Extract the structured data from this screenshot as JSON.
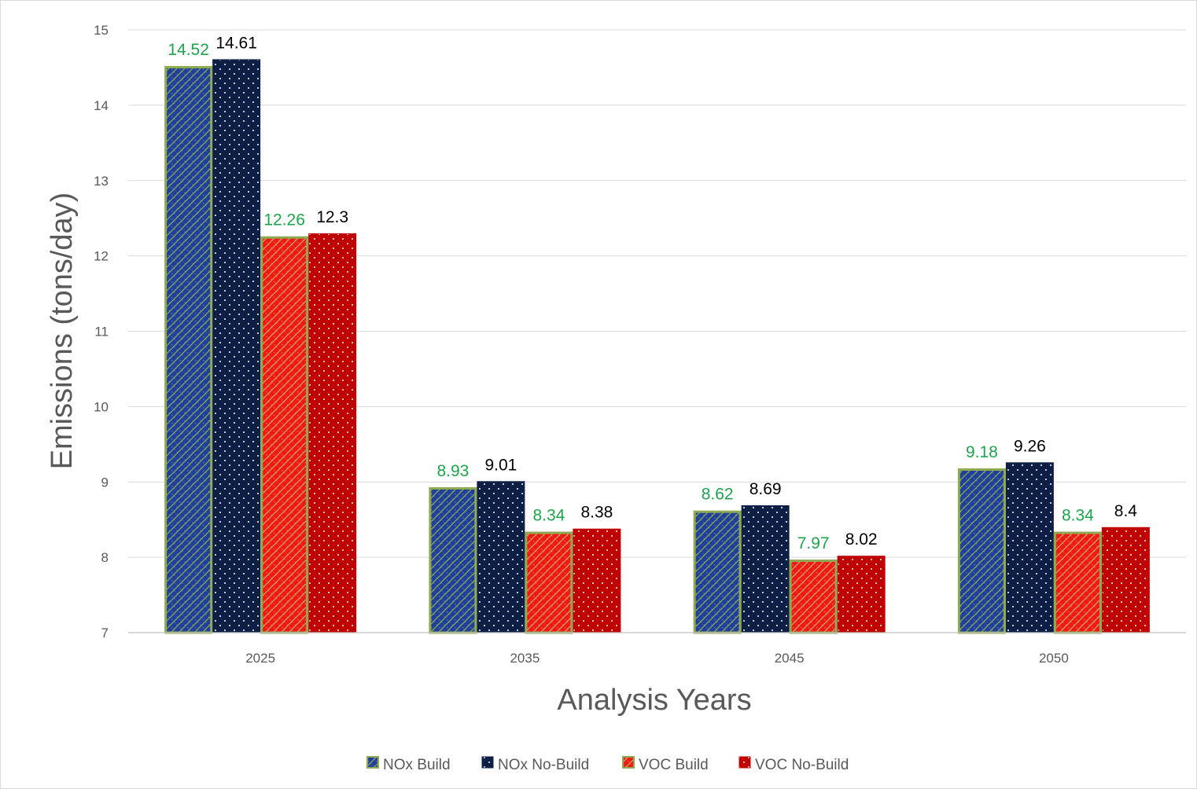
{
  "chart_data": {
    "type": "bar",
    "title": "",
    "xlabel": "Analysis Years",
    "ylabel": "Emissions (tons/day)",
    "ylim": [
      7,
      15
    ],
    "yticks": [
      7,
      8,
      9,
      10,
      11,
      12,
      13,
      14,
      15
    ],
    "grid": true,
    "legend_position": "bottom",
    "categories": [
      "2025",
      "2035",
      "2045",
      "2050"
    ],
    "series": [
      {
        "name": "NOx Build",
        "values": [
          14.52,
          8.93,
          8.62,
          9.18
        ],
        "value_labels": [
          "14.52",
          "8.93",
          "8.62",
          "9.18"
        ],
        "fill": "#1f3f9f",
        "pattern": "hatch",
        "border": "#8faa52",
        "label_color": "#1ea44c"
      },
      {
        "name": "NOx No-Build",
        "values": [
          14.61,
          9.01,
          8.69,
          9.26
        ],
        "value_labels": [
          "14.61",
          "9.01",
          "8.69",
          "9.26"
        ],
        "fill": "#0e1f45",
        "pattern": "dots",
        "border": "#0e1f45",
        "label_color": "#000000"
      },
      {
        "name": "VOC Build",
        "values": [
          12.26,
          8.34,
          7.97,
          8.34
        ],
        "value_labels": [
          "12.26",
          "8.34",
          "7.97",
          "8.34"
        ],
        "fill": "#f21a10",
        "pattern": "hatch",
        "border": "#8faa52",
        "label_color": "#1ea44c"
      },
      {
        "name": "VOC No-Build",
        "values": [
          12.3,
          8.38,
          8.02,
          8.4
        ],
        "value_labels": [
          "12.3",
          "8.38",
          "8.02",
          "8.4"
        ],
        "fill": "#c00000",
        "pattern": "dots",
        "border": "#c00000",
        "label_color": "#000000"
      }
    ]
  }
}
